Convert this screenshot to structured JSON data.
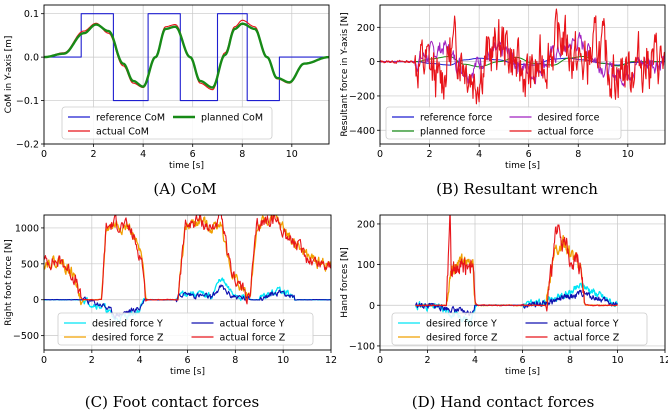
{
  "captions": [
    "(A) CoM",
    "(B) Resultant wrench",
    "(C) Foot contact forces",
    "(D) Hand contact forces"
  ],
  "colors": {
    "blue": "#1f1fd0",
    "green": "#178a17",
    "red": "#e8141a",
    "purple": "#a020c0",
    "cyan": "#00e5f5",
    "orange": "#f0a000",
    "navy": "#1010b0"
  },
  "chart_data": [
    {
      "type": "line",
      "panel": "A",
      "xlabel": "time [s]",
      "ylabel": "CoM in Y-axis [m]",
      "xlim": [
        0,
        11.5
      ],
      "ylim": [
        -0.2,
        0.12
      ],
      "xticks": [
        0,
        2,
        4,
        6,
        8,
        10
      ],
      "yticks": [
        -0.2,
        -0.1,
        0.0,
        0.1
      ],
      "ytick_labels": [
        "−0.2",
        "−0.1",
        "0.0",
        "0.1"
      ],
      "grid": true,
      "legend_position": "bottom-center",
      "series": [
        {
          "name": "reference CoM",
          "color": "blue",
          "width": 1.1,
          "kind": "step",
          "x": [
            0,
            1.5,
            1.5,
            2.8,
            2.8,
            4.2,
            4.2,
            5.5,
            5.5,
            7.0,
            7.0,
            8.2,
            8.2,
            9.5,
            9.5,
            11.5
          ],
          "y": [
            0,
            0,
            0.1,
            0.1,
            -0.1,
            -0.1,
            0.1,
            0.1,
            -0.1,
            -0.1,
            0.1,
            0.1,
            -0.1,
            -0.1,
            0,
            0
          ]
        },
        {
          "name": "actual CoM",
          "color": "red",
          "width": 1.1,
          "kind": "wave",
          "x": [
            0,
            0.8,
            1.6,
            2.1,
            2.6,
            3.2,
            3.6,
            4.0,
            4.5,
            4.9,
            5.3,
            5.9,
            6.3,
            6.8,
            7.3,
            7.7,
            8.0,
            8.5,
            9.0,
            9.4,
            9.9,
            10.5,
            11.5
          ],
          "y": [
            0.0,
            0.01,
            0.06,
            0.078,
            0.055,
            -0.02,
            -0.06,
            -0.07,
            0.0,
            0.07,
            0.075,
            0.0,
            -0.06,
            -0.075,
            0.01,
            0.07,
            0.085,
            0.07,
            0.0,
            -0.05,
            -0.06,
            -0.015,
            0.0
          ]
        },
        {
          "name": "planned CoM",
          "color": "green",
          "width": 2.4,
          "kind": "wave",
          "x": [
            0,
            0.8,
            1.6,
            2.1,
            2.6,
            3.2,
            3.6,
            4.0,
            4.5,
            4.9,
            5.3,
            5.9,
            6.3,
            6.8,
            7.3,
            7.7,
            8.0,
            8.5,
            9.0,
            9.4,
            9.9,
            10.5,
            11.5
          ],
          "y": [
            0.0,
            0.008,
            0.055,
            0.075,
            0.06,
            -0.015,
            -0.055,
            -0.068,
            0.0,
            0.065,
            0.07,
            0.0,
            -0.055,
            -0.07,
            0.005,
            0.065,
            0.077,
            0.065,
            0.0,
            -0.048,
            -0.058,
            -0.015,
            0.0
          ]
        }
      ]
    },
    {
      "type": "line",
      "panel": "B",
      "xlabel": "time [s]",
      "ylabel": "Resultant force in Y-axis [N]",
      "xlim": [
        0,
        11.5
      ],
      "ylim": [
        -480,
        330
      ],
      "xticks": [
        0,
        2,
        4,
        6,
        8,
        10
      ],
      "yticks": [
        -400,
        -200,
        0,
        200
      ],
      "ytick_labels": [
        "−400",
        "−200",
        "0",
        "200"
      ],
      "grid": true,
      "legend_position": "bottom-center",
      "series": [
        {
          "name": "reference force",
          "color": "blue",
          "width": 1.0,
          "kind": "smooth",
          "x": [
            0,
            1.5,
            2.0,
            2.8,
            3.4,
            4.0,
            4.8,
            5.5,
            6.2,
            7.0,
            7.6,
            8.2,
            9.0,
            9.6,
            10.2,
            11.5
          ],
          "y": [
            0,
            0,
            -10,
            -20,
            10,
            20,
            10,
            -15,
            -20,
            15,
            20,
            10,
            -10,
            -20,
            -5,
            0
          ]
        },
        {
          "name": "planned force",
          "color": "green",
          "width": 1.0,
          "kind": "smooth",
          "x": [
            0,
            1.5,
            2.0,
            2.8,
            3.4,
            4.0,
            4.8,
            5.5,
            6.2,
            7.0,
            7.6,
            8.2,
            9.0,
            9.6,
            10.2,
            11.5
          ],
          "y": [
            0,
            0,
            15,
            30,
            -15,
            -30,
            0,
            25,
            -10,
            -20,
            20,
            30,
            -10,
            -25,
            0,
            0
          ]
        },
        {
          "name": "desired force",
          "color": "purple",
          "width": 1.0,
          "kind": "noisy",
          "seed": 7,
          "amp": 90,
          "x": [
            0,
            1.4,
            2.0,
            2.6,
            3.0,
            3.6,
            4.2,
            5.0,
            5.6,
            6.2,
            6.8,
            7.4,
            8.0,
            8.6,
            9.2,
            9.8,
            10.4,
            11.5
          ],
          "y": [
            0,
            0,
            40,
            90,
            10,
            -60,
            30,
            60,
            -20,
            -70,
            20,
            80,
            120,
            40,
            -60,
            -80,
            -10,
            0
          ]
        },
        {
          "name": "actual force",
          "color": "red",
          "width": 1.1,
          "kind": "noisy",
          "seed": 13,
          "amp": 260,
          "x": [
            0,
            1.4,
            2.0,
            2.4,
            2.8,
            3.2,
            3.8,
            4.4,
            5.0,
            5.6,
            6.2,
            6.8,
            7.4,
            7.8,
            8.2,
            8.8,
            9.4,
            10.0,
            10.6,
            11.5
          ],
          "y": [
            0,
            0,
            -20,
            -150,
            60,
            80,
            -100,
            40,
            120,
            -60,
            -90,
            60,
            150,
            30,
            -30,
            90,
            -60,
            -40,
            10,
            0
          ]
        }
      ]
    },
    {
      "type": "line",
      "panel": "C",
      "xlabel": "time [s]",
      "ylabel": "Right foot force [N]",
      "xlim": [
        0,
        12
      ],
      "ylim": [
        -700,
        1180
      ],
      "xticks": [
        0,
        2,
        4,
        6,
        8,
        10,
        12
      ],
      "yticks": [
        -500,
        0,
        500,
        1000
      ],
      "ytick_labels": [
        "−500",
        "0",
        "500",
        "1000"
      ],
      "grid": true,
      "legend_position": "bottom-center",
      "series": [
        {
          "name": "desired force Y",
          "color": "cyan",
          "width": 1.3,
          "kind": "noisy",
          "seed": 21,
          "amp": 80,
          "x": [
            0,
            1.5,
            1.6,
            2.5,
            3.0,
            3.6,
            4.0,
            4.2,
            5.5,
            5.8,
            6.4,
            7.0,
            7.4,
            7.8,
            8.6,
            9.0,
            9.6,
            10.0,
            10.5,
            12
          ],
          "y": [
            0,
            0,
            0,
            -100,
            -280,
            -200,
            -150,
            0,
            0,
            100,
            80,
            50,
            300,
            100,
            0,
            0,
            100,
            150,
            0,
            0
          ]
        },
        {
          "name": "desired force Z",
          "color": "orange",
          "width": 1.3,
          "kind": "noisy",
          "seed": 22,
          "amp": 140,
          "x": [
            0,
            0.3,
            0.8,
            1.3,
            1.55,
            1.62,
            2.4,
            2.6,
            3.0,
            3.6,
            4.1,
            4.25,
            5.6,
            5.9,
            6.5,
            7.0,
            7.4,
            7.8,
            8.6,
            8.9,
            9.6,
            10.2,
            11.0,
            11.5,
            12
          ],
          "y": [
            520,
            540,
            520,
            300,
            0,
            0,
            0,
            1000,
            1050,
            1000,
            560,
            0,
            0,
            1000,
            1100,
            1000,
            1100,
            400,
            0,
            1000,
            1150,
            900,
            600,
            510,
            500
          ]
        },
        {
          "name": "actual force Y",
          "color": "navy",
          "width": 1.1,
          "kind": "noisy",
          "seed": 23,
          "amp": 70,
          "x": [
            0,
            1.5,
            1.6,
            2.5,
            3.0,
            3.6,
            4.0,
            4.2,
            5.5,
            5.8,
            6.4,
            7.0,
            7.4,
            7.8,
            8.6,
            9.0,
            9.6,
            10.0,
            10.5,
            12
          ],
          "y": [
            0,
            0,
            0,
            -80,
            -220,
            -160,
            -120,
            0,
            0,
            80,
            60,
            30,
            180,
            60,
            0,
            0,
            80,
            120,
            0,
            0
          ]
        },
        {
          "name": "actual force Z",
          "color": "red",
          "width": 1.1,
          "kind": "noisy",
          "seed": 24,
          "amp": 160,
          "x": [
            0,
            0.3,
            0.8,
            1.3,
            1.55,
            1.62,
            2.4,
            2.6,
            3.0,
            3.6,
            4.1,
            4.25,
            5.6,
            5.9,
            6.5,
            7.0,
            7.4,
            7.8,
            8.6,
            8.9,
            9.6,
            10.2,
            11.0,
            11.5,
            12
          ],
          "y": [
            520,
            545,
            520,
            300,
            0,
            0,
            0,
            1000,
            1080,
            980,
            560,
            0,
            0,
            1020,
            1120,
            980,
            1150,
            400,
            0,
            1020,
            1160,
            880,
            600,
            510,
            500
          ]
        }
      ]
    },
    {
      "type": "line",
      "panel": "D",
      "xlabel": "time [s]",
      "ylabel": "Hand forces [N]",
      "xlim": [
        0,
        12
      ],
      "ylim": [
        -110,
        222
      ],
      "xticks": [
        0,
        2,
        4,
        6,
        8,
        10,
        12
      ],
      "yticks": [
        -100,
        0,
        100,
        200
      ],
      "ytick_labels": [
        "−100",
        "0",
        "100",
        "200"
      ],
      "grid": true,
      "legend_position": "bottom-center",
      "series": [
        {
          "name": "desired force Y",
          "color": "cyan",
          "width": 1.3,
          "kind": "noisy",
          "seed": 31,
          "amp": 14,
          "x": [
            1.5,
            2.5,
            3.0,
            3.4,
            3.8,
            4.0,
            5.6,
            6.0,
            7.0,
            7.5,
            8.0,
            8.5,
            10.0
          ],
          "y": [
            0,
            -5,
            -20,
            -30,
            -40,
            0,
            0,
            0,
            10,
            20,
            30,
            50,
            0
          ]
        },
        {
          "name": "desired force Z",
          "color": "orange",
          "width": 1.3,
          "kind": "noisy",
          "seed": 32,
          "amp": 30,
          "x": [
            1.5,
            2.8,
            3.0,
            3.3,
            3.6,
            3.9,
            4.0,
            5.6,
            7.0,
            7.3,
            7.7,
            8.1,
            8.5,
            8.6,
            10.0
          ],
          "y": [
            0,
            0,
            90,
            110,
            100,
            120,
            0,
            0,
            0,
            130,
            160,
            120,
            90,
            0,
            0
          ]
        },
        {
          "name": "actual force Y",
          "color": "navy",
          "width": 1.1,
          "kind": "noisy",
          "seed": 33,
          "amp": 12,
          "x": [
            1.5,
            2.5,
            3.0,
            3.4,
            3.8,
            4.0,
            5.6,
            6.0,
            7.0,
            7.5,
            8.0,
            8.5,
            10.0
          ],
          "y": [
            0,
            -3,
            -10,
            -15,
            -20,
            0,
            0,
            0,
            5,
            15,
            20,
            30,
            0
          ]
        },
        {
          "name": "actual force Z",
          "color": "red",
          "width": 1.1,
          "kind": "noisy",
          "seed": 34,
          "amp": 40,
          "x": [
            1.5,
            2.8,
            2.95,
            3.0,
            3.1,
            3.3,
            3.6,
            3.9,
            4.0,
            5.6,
            7.0,
            7.3,
            7.5,
            7.7,
            8.1,
            8.5,
            8.6,
            10.0
          ],
          "y": [
            0,
            0,
            220,
            60,
            100,
            90,
            100,
            110,
            0,
            0,
            0,
            110,
            220,
            150,
            120,
            90,
            0,
            0
          ]
        }
      ]
    }
  ]
}
